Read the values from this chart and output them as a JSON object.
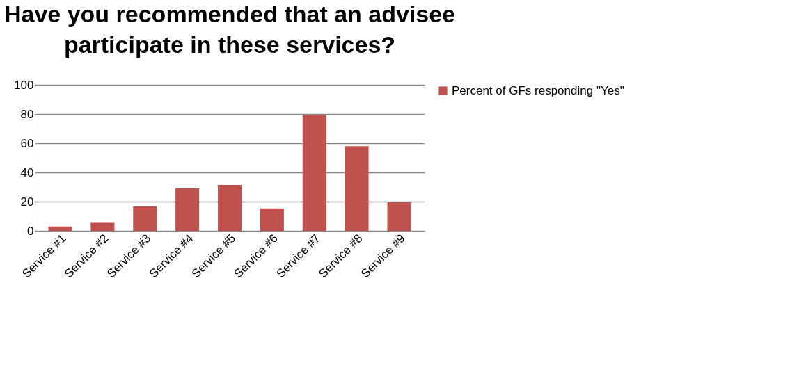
{
  "chart_data": {
    "type": "bar",
    "title": "Have you recommended that an advisee participate in these services?",
    "categories": [
      "Service #1",
      "Service #2",
      "Service #3",
      "Service #4",
      "Service #5",
      "Service #6",
      "Service #7",
      "Service #8",
      "Service #9"
    ],
    "series": [
      {
        "name": "Percent of GFs responding \"Yes\"",
        "color": "#c0504d",
        "values": [
          3,
          5.5,
          16.7,
          29,
          31.4,
          15.4,
          79.3,
          58,
          19.5
        ]
      }
    ],
    "ylim": [
      0,
      100
    ],
    "yticks": [
      0,
      20,
      40,
      60,
      80,
      100
    ],
    "grid": "y",
    "legend": "right"
  }
}
